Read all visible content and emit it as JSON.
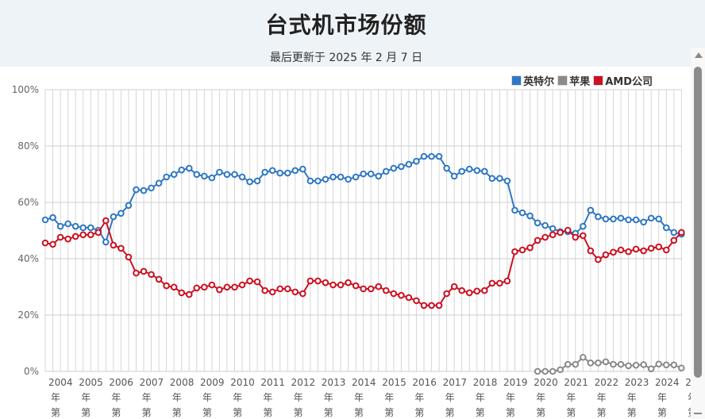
{
  "header": {
    "title": "台式机市场份额",
    "subtitle": "最后更新于 2025 年 2 月 7 日"
  },
  "legend": [
    {
      "label": "英特尔",
      "color": "#2f78c4"
    },
    {
      "label": "苹果",
      "color": "#8a8a8a"
    },
    {
      "label": "AMD公司",
      "color": "#cc1122"
    }
  ],
  "axis": {
    "y_ticks": [
      "100%",
      "80%",
      "60%",
      "40%",
      "20%",
      "0%"
    ],
    "x_labels": [
      "2004",
      "2005",
      "2006",
      "2007",
      "2008",
      "2009",
      "2010",
      "2011",
      "2012",
      "2013",
      "2014",
      "2015",
      "2016",
      "2017",
      "2018",
      "2019",
      "2020",
      "2021",
      "2022",
      "2023",
      "2024",
      "2"
    ],
    "x_suffix_line1": "年",
    "x_suffix_line2": "第"
  },
  "chart_data": {
    "type": "line",
    "title": "台式机市场份额",
    "subtitle": "最后更新于 2025 年 2 月 7 日",
    "xlabel": "",
    "ylabel": "",
    "ylim": [
      0,
      100
    ],
    "grid": true,
    "legend_position": "top-right",
    "x_start": "2004 Q1",
    "x_step": "quarter",
    "num_points": 85,
    "series": [
      {
        "name": "英特尔",
        "color": "#2f78c4",
        "start_index": 0,
        "values": [
          53.8,
          54.6,
          51.5,
          52.4,
          51.5,
          51.0,
          51.0,
          50.1,
          45.9,
          54.9,
          56.1,
          58.9,
          64.5,
          64.2,
          65.1,
          66.8,
          69.0,
          69.9,
          71.5,
          72.1,
          69.9,
          69.3,
          68.7,
          70.7,
          69.9,
          69.9,
          69.0,
          67.3,
          67.6,
          70.7,
          71.3,
          70.4,
          70.4,
          71.3,
          71.8,
          67.6,
          67.6,
          68.2,
          69.0,
          69.0,
          68.2,
          69.0,
          70.1,
          70.1,
          69.3,
          71.0,
          72.1,
          72.7,
          73.5,
          74.6,
          76.3,
          76.3,
          76.3,
          72.1,
          69.3,
          71.0,
          71.8,
          71.3,
          71.0,
          68.5,
          68.5,
          67.6,
          57.2,
          56.3,
          55.2,
          52.7,
          51.8,
          50.7,
          49.6,
          49.6,
          49.0,
          51.5,
          57.2,
          54.9,
          54.1,
          54.1,
          54.4,
          53.8,
          53.8,
          53.0,
          54.4,
          54.1,
          51.0,
          49.3,
          48.7
        ]
      },
      {
        "name": "苹果",
        "color": "#8a8a8a",
        "start_index": 65,
        "values": [
          0,
          0,
          0,
          0.6,
          2.5,
          2.5,
          5.0,
          3.0,
          3.0,
          3.4,
          2.5,
          2.5,
          2.0,
          2.2,
          2.4,
          0.9,
          2.6,
          2.3,
          2.3,
          1.2
        ]
      },
      {
        "name": "AMD公司",
        "color": "#cc1122",
        "start_index": 0,
        "values": [
          45.6,
          45.1,
          47.6,
          47.0,
          47.9,
          48.5,
          48.5,
          49.3,
          53.5,
          44.8,
          43.7,
          40.6,
          34.9,
          35.5,
          34.4,
          32.7,
          30.4,
          29.9,
          27.9,
          27.3,
          29.6,
          29.9,
          30.7,
          29.0,
          29.9,
          29.9,
          30.7,
          32.1,
          31.8,
          28.7,
          28.2,
          29.3,
          29.3,
          28.2,
          27.6,
          32.1,
          32.1,
          31.5,
          30.7,
          30.7,
          31.5,
          30.4,
          29.3,
          29.3,
          30.1,
          28.7,
          27.6,
          27.0,
          26.2,
          25.1,
          23.4,
          23.4,
          23.4,
          27.6,
          30.1,
          28.7,
          27.9,
          28.5,
          28.7,
          31.3,
          31.3,
          32.1,
          42.5,
          43.1,
          43.9,
          46.5,
          47.6,
          48.5,
          49.3,
          50.1,
          47.6,
          48.2,
          42.8,
          39.7,
          41.4,
          42.3,
          43.1,
          42.5,
          43.4,
          42.8,
          43.7,
          44.2,
          43.1,
          46.5,
          49.3
        ]
      }
    ]
  }
}
